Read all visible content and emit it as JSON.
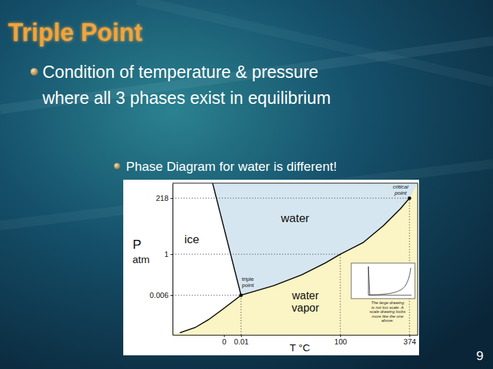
{
  "slide": {
    "title": "Triple Point",
    "bullets": [
      [
        "Condition of temperature & pressure",
        "where all 3 phases exist in equilibrium"
      ]
    ],
    "sub_bullets": [
      "Phase Diagram for water is different!"
    ],
    "page": 9
  },
  "chart_data": {
    "type": "phase_diagram",
    "x_label": "T °C",
    "y_label": [
      "P",
      "atm"
    ],
    "xlim": [
      -50,
      400
    ],
    "ylim": [
      0,
      300
    ],
    "xticks": [
      0,
      0.01,
      100,
      374
    ],
    "yticks": [
      0.006,
      1,
      218
    ],
    "colors": [
      "#ffffff",
      "#d6e6f0",
      "#fbf4c4"
    ],
    "series": [
      {
        "x": [
          -43,
          -28,
          -15,
          -1,
          0.01
        ],
        "values": [
          0.0003,
          0.0011,
          0.0023,
          0.0039,
          0.006
        ],
        "color": "#111111"
      },
      {
        "x": [
          0.01,
          -11
        ],
        "values": [
          0.006,
          300
        ],
        "color": "#111111"
      },
      {
        "x": [
          0.01,
          33,
          61,
          85,
          100,
          190,
          271,
          339,
          374
        ],
        "values": [
          0.006,
          0.24,
          0.5,
          0.79,
          1,
          46,
          112,
          178,
          218
        ],
        "color": "#111111"
      }
    ],
    "annotations": [
      [
        "water"
      ],
      [
        "ice"
      ],
      [
        "triple",
        "point"
      ],
      [
        "water",
        "vapor"
      ],
      [
        "critical",
        "point"
      ]
    ],
    "inset_caption": [
      "The large drawing",
      "is not too scale. A",
      "scale drawing looks",
      "more like the one",
      "above."
    ]
  }
}
